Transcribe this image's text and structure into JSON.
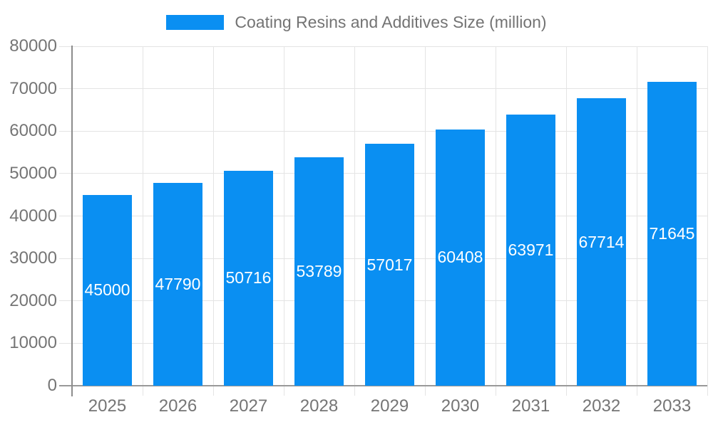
{
  "chart_data": {
    "type": "bar",
    "title": "Coating Resins and Additives Size (million)",
    "categories": [
      "2025",
      "2026",
      "2027",
      "2028",
      "2029",
      "2030",
      "2031",
      "2032",
      "2033"
    ],
    "values": [
      45000,
      47790,
      50716,
      53789,
      57017,
      60408,
      63971,
      67714,
      71645
    ],
    "xlabel": "",
    "ylabel": "",
    "ylim": [
      0,
      80000
    ],
    "y_ticks": [
      0,
      10000,
      20000,
      30000,
      40000,
      50000,
      60000,
      70000,
      80000
    ],
    "grid": true,
    "legend_position": "top-center",
    "colors": {
      "bar": "#0a8ff2",
      "grid": "#e4e4e4",
      "y_axis": "#8c8c8c",
      "x_axis": "#999999",
      "tick_text": "#757575",
      "title_text": "#737373",
      "bar_label": "#ffffff"
    }
  }
}
